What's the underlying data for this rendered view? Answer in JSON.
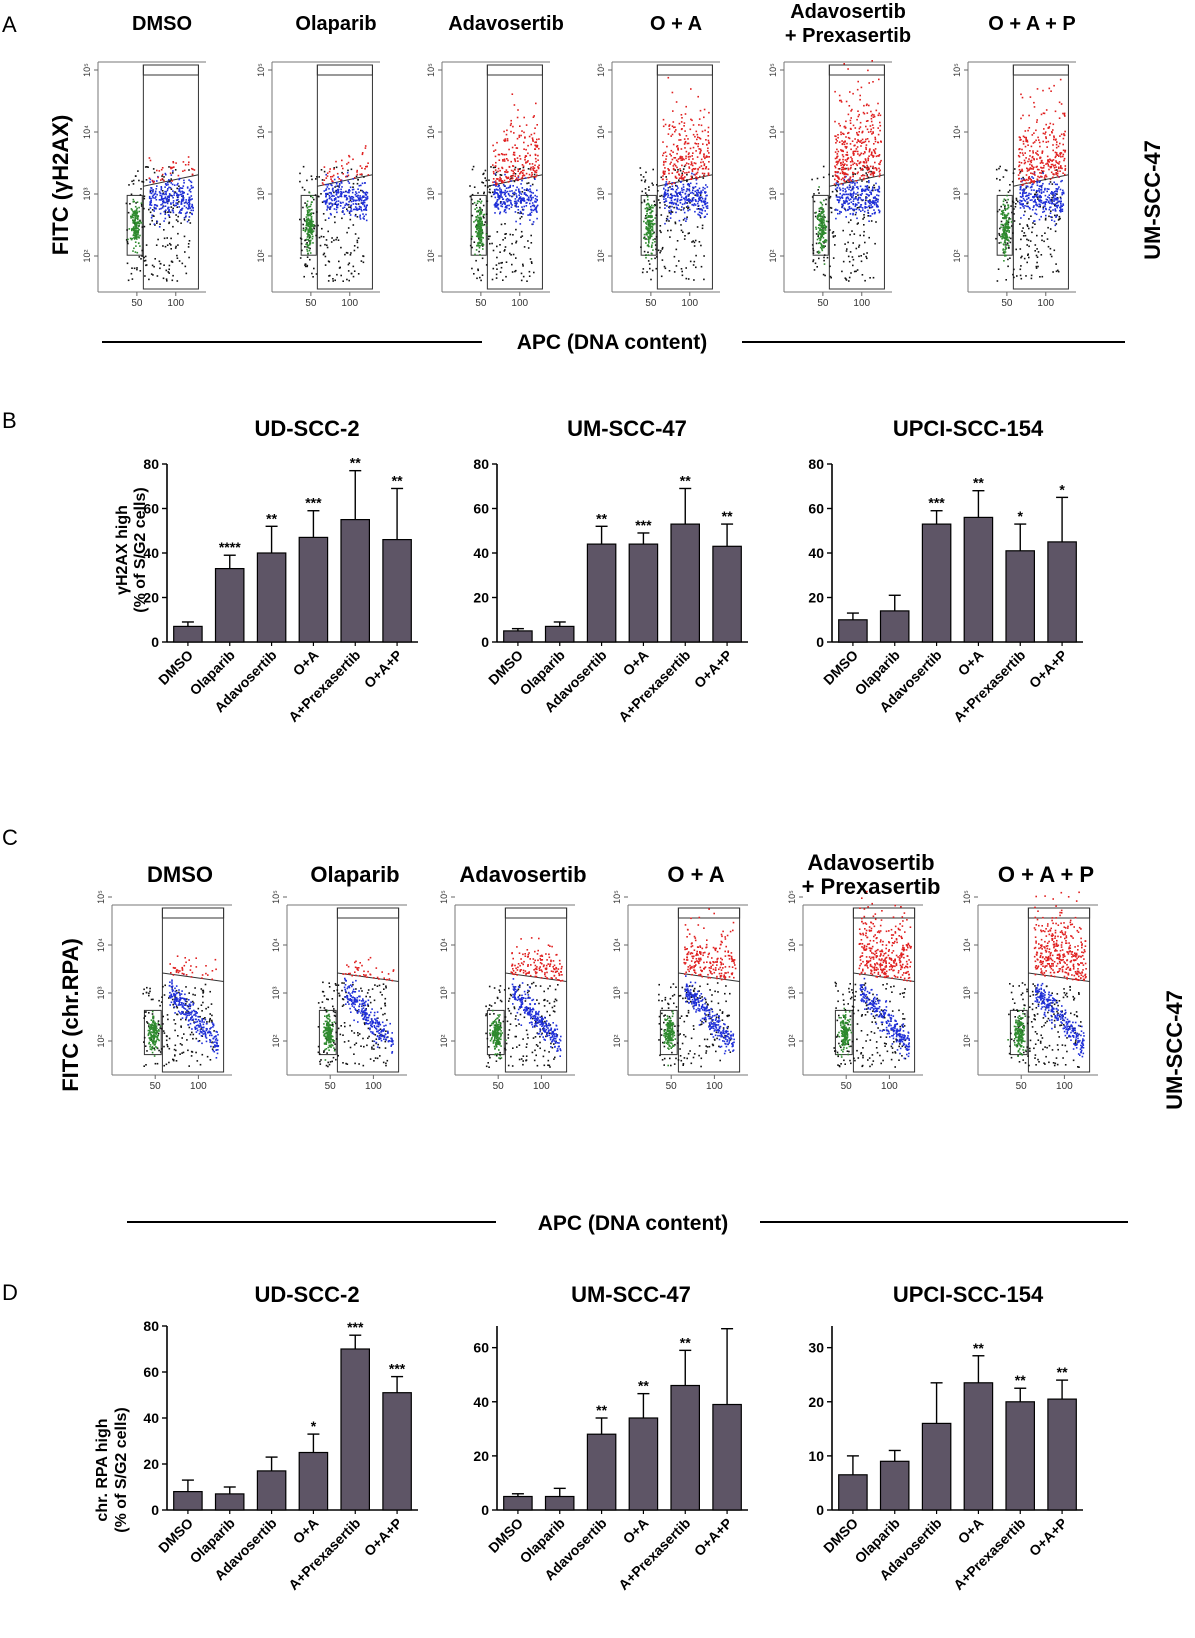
{
  "panels": {
    "A": {
      "letter": "A",
      "titles": [
        "DMSO",
        "Olaparib",
        "Adavosertib",
        "O + A",
        "Adavosertib",
        "O + A + P"
      ],
      "title_line2": [
        "",
        "",
        "",
        "",
        "+ Prexasertib",
        ""
      ],
      "ylabel": "FITC (γH2AX)",
      "xlabel": "APC (DNA content)",
      "cell_line": "UM-SCC-47",
      "x_ticks": [
        "50",
        "100"
      ],
      "y_ticks": [
        "10²",
        "10³",
        "10⁴",
        "10⁵"
      ],
      "red_density": [
        0.05,
        0.08,
        0.55,
        0.65,
        0.95,
        0.75
      ]
    },
    "C": {
      "letter": "C",
      "titles": [
        "DMSO",
        "Olaparib",
        "Adavosertib",
        "O + A",
        "Adavosertib",
        "O + A + P"
      ],
      "title_line2": [
        "",
        "",
        "",
        "",
        "+ Prexasertib",
        ""
      ],
      "ylabel": "FITC (chr.RPA)",
      "xlabel": "APC (DNA content)",
      "cell_line": "UM-SCC-47",
      "x_ticks": [
        "50",
        "100"
      ],
      "y_ticks": [
        "10²",
        "10³",
        "10⁴",
        "10⁵"
      ],
      "red_density": [
        0.05,
        0.06,
        0.35,
        0.55,
        0.9,
        0.95
      ]
    }
  },
  "letters": {
    "B": "B",
    "D": "D"
  },
  "ylabel_B": [
    "γH2AX high",
    "(% of S/G2 cells)"
  ],
  "ylabel_D": [
    "chr. RPA high",
    "(% of S/G2 cells)"
  ],
  "chart_data": [
    {
      "type": "bar",
      "panel": "B",
      "title": "UD-SCC-2",
      "categories": [
        "DMSO",
        "Olaparib",
        "Adavosertib",
        "O+A",
        "A+Prexasertib",
        "O+A+P"
      ],
      "values": [
        7,
        33,
        40,
        47,
        55,
        46
      ],
      "errors": [
        2,
        6,
        12,
        12,
        22,
        23
      ],
      "significance": [
        "",
        "****",
        "**",
        "***",
        "**",
        "**"
      ],
      "ylim": [
        0,
        80
      ],
      "yticks": [
        0,
        20,
        40,
        60,
        80
      ],
      "ylabel": "γH2AX high (% of S/G2 cells)"
    },
    {
      "type": "bar",
      "panel": "B",
      "title": "UM-SCC-47",
      "categories": [
        "DMSO",
        "Olaparib",
        "Adavosertib",
        "O+A",
        "A+Prexasertib",
        "O+A+P"
      ],
      "values": [
        5,
        7,
        44,
        44,
        53,
        43
      ],
      "errors": [
        1,
        2,
        8,
        5,
        16,
        10
      ],
      "significance": [
        "",
        "",
        "**",
        "***",
        "**",
        "**"
      ],
      "ylim": [
        0,
        80
      ],
      "yticks": [
        0,
        20,
        40,
        60,
        80
      ],
      "ylabel": ""
    },
    {
      "type": "bar",
      "panel": "B",
      "title": "UPCI-SCC-154",
      "categories": [
        "DMSO",
        "Olaparib",
        "Adavosertib",
        "O+A",
        "A+Prexasertib",
        "O+A+P"
      ],
      "values": [
        10,
        14,
        53,
        56,
        41,
        45
      ],
      "errors": [
        3,
        7,
        6,
        12,
        12,
        20
      ],
      "significance": [
        "",
        "",
        "***",
        "**",
        "*",
        "*"
      ],
      "ylim": [
        0,
        80
      ],
      "yticks": [
        0,
        20,
        40,
        60,
        80
      ],
      "ylabel": ""
    },
    {
      "type": "bar",
      "panel": "D",
      "title": "UD-SCC-2",
      "categories": [
        "DMSO",
        "Olaparib",
        "Adavosertib",
        "O+A",
        "A+Prexasertib",
        "O+A+P"
      ],
      "values": [
        8,
        7,
        17,
        25,
        70,
        51
      ],
      "errors": [
        5,
        3,
        6,
        8,
        6,
        7
      ],
      "significance": [
        "",
        "",
        "",
        "*",
        "***",
        "***"
      ],
      "ylim": [
        0,
        80
      ],
      "yticks": [
        0,
        20,
        40,
        60,
        80
      ],
      "ylabel": "chr. RPA high (% of S/G2 cells)"
    },
    {
      "type": "bar",
      "panel": "D",
      "title": "UM-SCC-47",
      "categories": [
        "DMSO",
        "Olaparib",
        "Adavosertib",
        "O+A",
        "A+Prexasertib",
        "O+A+P"
      ],
      "values": [
        5,
        5,
        28,
        34,
        46,
        39
      ],
      "errors": [
        1,
        3,
        6,
        9,
        13,
        28
      ],
      "significance": [
        "",
        "",
        "**",
        "**",
        "**",
        ""
      ],
      "ylim": [
        0,
        68
      ],
      "yticks": [
        0,
        20,
        40,
        60
      ],
      "ylabel": ""
    },
    {
      "type": "bar",
      "panel": "D",
      "title": "UPCI-SCC-154",
      "categories": [
        "DMSO",
        "Olaparib",
        "Adavosertib",
        "O+A",
        "A+Prexasertib",
        "O+A+P"
      ],
      "values": [
        6.5,
        9,
        16,
        23.5,
        20,
        20.5
      ],
      "errors": [
        3.5,
        2,
        7.5,
        5,
        2.5,
        3.5
      ],
      "significance": [
        "",
        "",
        "",
        "**",
        "**",
        "**"
      ],
      "ylim": [
        0,
        34
      ],
      "yticks": [
        0,
        10,
        20,
        30
      ],
      "ylabel": ""
    }
  ],
  "colors": {
    "bar_fill": "#5e5566",
    "green": "#2e8a2e",
    "blue": "#1f2fd8",
    "red": "#e02020",
    "black": "#111111"
  }
}
